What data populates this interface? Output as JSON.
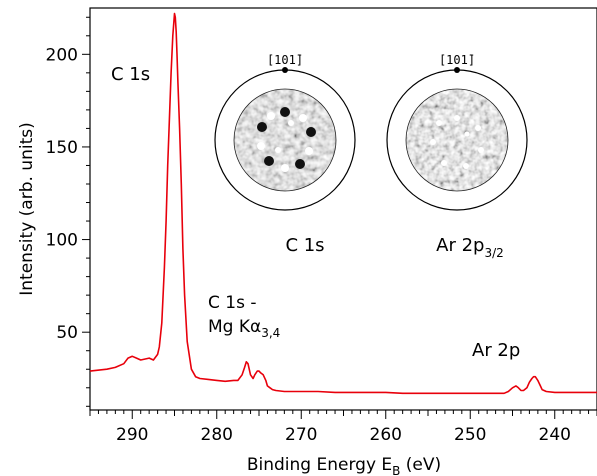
{
  "chart_data": {
    "type": "line",
    "xlabel": "Binding Energy E",
    "xlabel_sub": "B",
    "xlabel_unit": " (eV)",
    "ylabel": "Intensity (arb. units)",
    "xlim": [
      295,
      235
    ],
    "ylim": [
      8,
      225
    ],
    "x_ticks": [
      290,
      280,
      270,
      260,
      250,
      240
    ],
    "y_ticks": [
      50,
      100,
      150,
      200
    ],
    "grid": false,
    "legend": "none",
    "line_color": "#e8000b",
    "series": [
      {
        "x": [
          295,
          293,
          292,
          291,
          290.5,
          290,
          289.5,
          289,
          288,
          287.5,
          287,
          286.8,
          286.5,
          286.2,
          286,
          285.8,
          285.6,
          285.4,
          285.2,
          285,
          284.9,
          284.8,
          284.7,
          284.6,
          284.4,
          284.2,
          284,
          283.8,
          283.5,
          283,
          282.5,
          282,
          281,
          280,
          279,
          278,
          277.5,
          277,
          276.7,
          276.5,
          276.3,
          276,
          275.7,
          275.5,
          275.2,
          275,
          274.8,
          274.5,
          274.2,
          274,
          273.7,
          273.4,
          273,
          272,
          270,
          268,
          266,
          264,
          262,
          260,
          258,
          256,
          254,
          252,
          250,
          248,
          246,
          245.5,
          245,
          244.6,
          244.3,
          244,
          243.7,
          243.3,
          243,
          242.7,
          242.5,
          242.3,
          242,
          241.7,
          241.5,
          241,
          240,
          238,
          236,
          235
        ],
        "y": [
          29,
          30,
          31,
          33,
          36,
          37,
          36,
          35,
          36,
          35,
          38,
          42,
          55,
          85,
          110,
          140,
          165,
          190,
          210,
          222,
          220,
          212,
          200,
          185,
          160,
          130,
          95,
          70,
          45,
          30,
          26,
          25,
          24.5,
          24,
          23.5,
          24,
          24,
          27,
          31,
          34,
          33,
          27,
          25,
          27,
          29,
          29,
          28,
          27,
          24,
          21,
          20,
          19,
          18.5,
          18,
          18,
          18,
          17.5,
          17.5,
          17.5,
          17.5,
          17,
          17,
          17,
          17,
          17,
          17,
          17,
          18,
          20,
          21,
          20,
          18.5,
          18.5,
          20,
          23,
          25,
          26,
          26,
          24,
          21,
          19,
          18,
          17.5,
          17.5,
          17.5,
          17.5
        ]
      }
    ]
  },
  "annotations": {
    "c1s_peak": "C 1s",
    "satellite_line1": "C 1s -",
    "satellite_line2": "Mg K",
    "satellite_alpha": "α",
    "satellite_sub": "3,4",
    "ar2p_peak": "Ar 2p"
  },
  "insets": {
    "left": {
      "direction": "[101̄]",
      "label": "C 1s"
    },
    "right": {
      "direction": "[101̄]",
      "label_main": "Ar 2p",
      "label_sub": "3/2"
    }
  }
}
